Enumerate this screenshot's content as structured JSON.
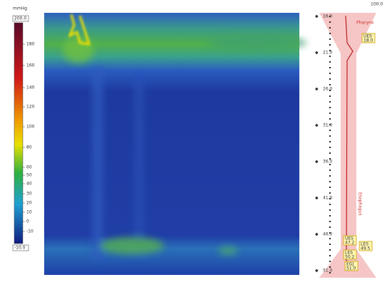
{
  "colorbar": {
    "unit": "mmHg",
    "max": "200.0",
    "min": "-10.0",
    "ticks": [
      "180",
      "160",
      "140",
      "120",
      "100",
      "80",
      "60",
      "50",
      "40",
      "30",
      "20",
      "10",
      "0",
      "-10"
    ]
  },
  "probe": {
    "depths": [
      "16.0",
      "21.0",
      "26.0",
      "31.0",
      "36.0",
      "41.0",
      "46.0",
      "51.0"
    ],
    "regions": [
      "Pharynx",
      "Esophagus"
    ],
    "markers": [
      {
        "label": "UES",
        "value": "18.0"
      },
      {
        "label": "UES",
        "value": "47.2"
      },
      {
        "label": "LES",
        "value": "49.5"
      },
      {
        "label": "LES",
        "value": "50.2"
      },
      {
        "label": "EGJ",
        "value": "51.0"
      }
    ],
    "footer": "100.0"
  }
}
